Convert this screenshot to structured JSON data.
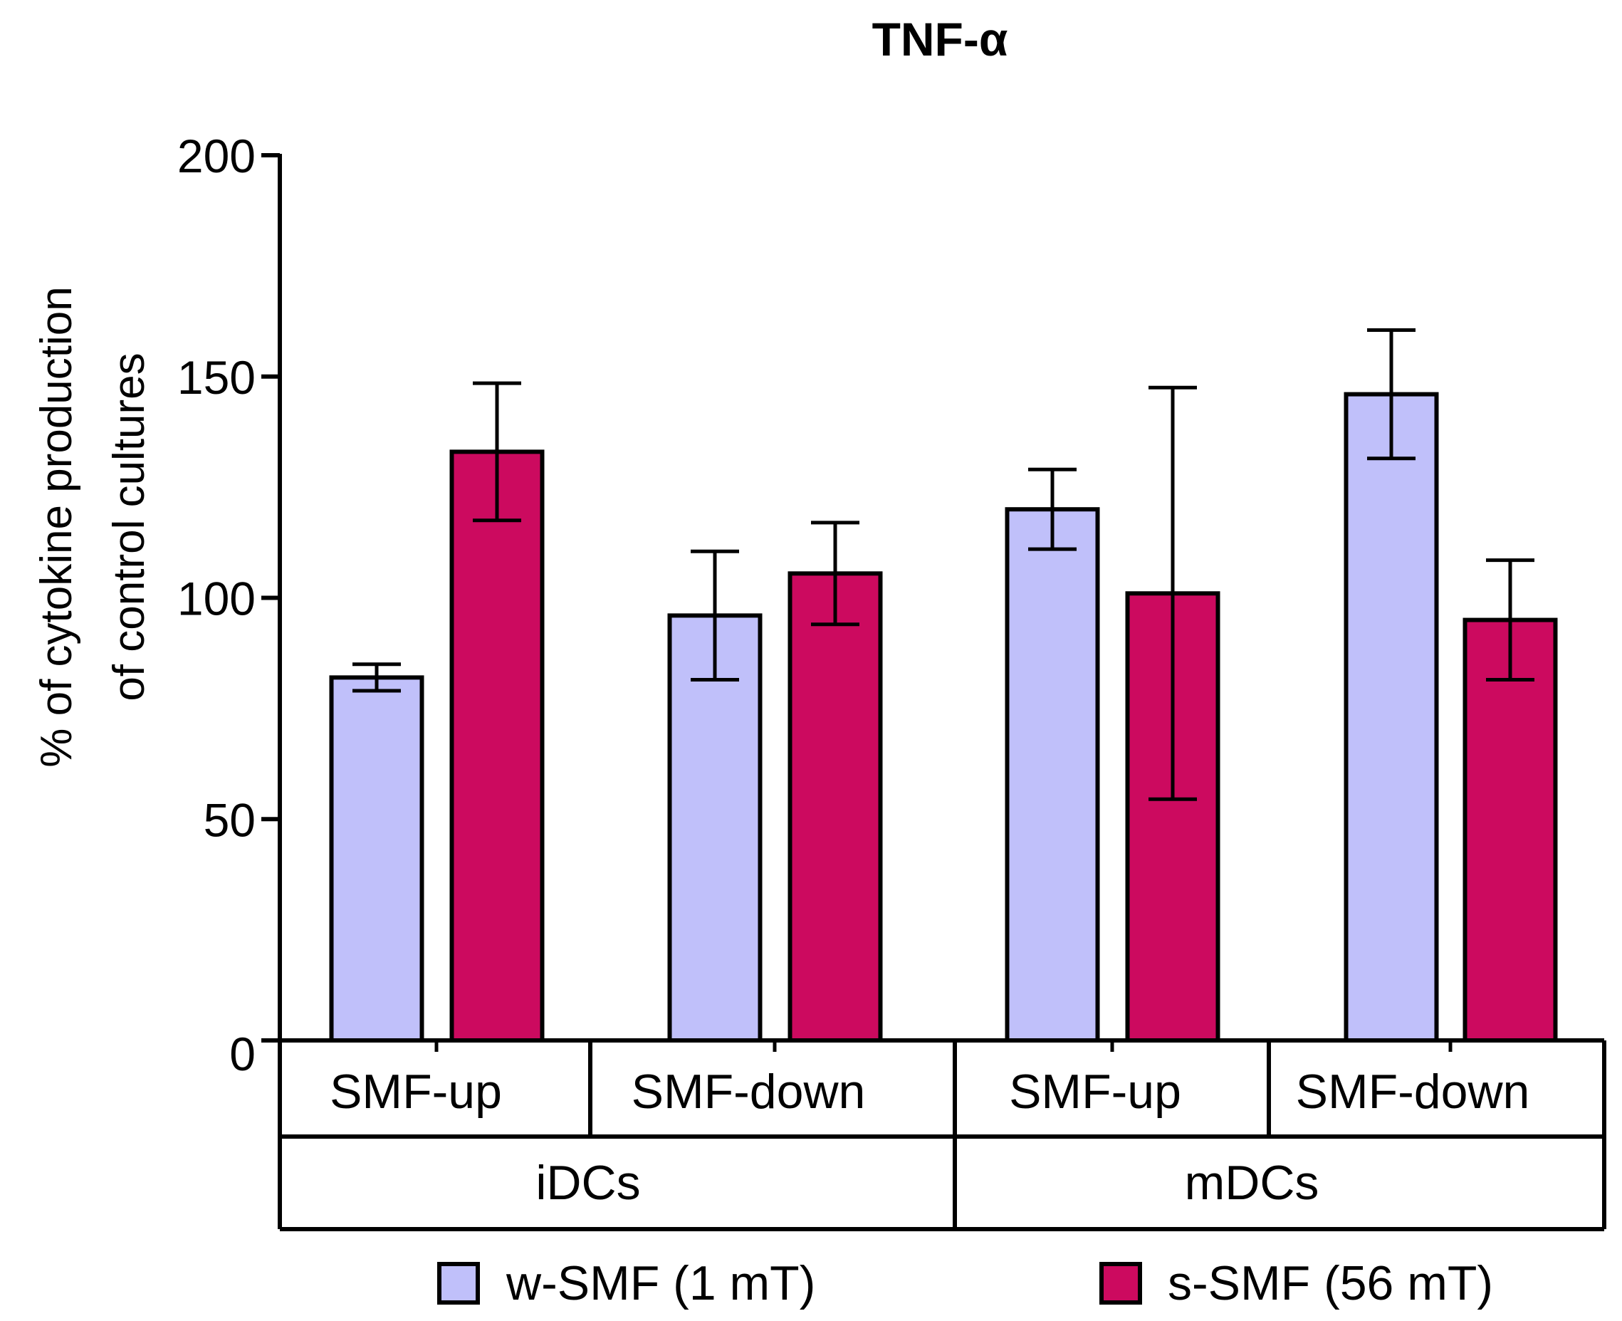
{
  "chart_data": {
    "type": "bar",
    "title": "TNF-α",
    "ylabel_lines": [
      "% of cytokine production",
      "of control cultures"
    ],
    "ylim": [
      0,
      200
    ],
    "yticks": [
      0,
      50,
      100,
      150,
      200
    ],
    "categories": [
      "SMF-up",
      "SMF-down",
      "SMF-up",
      "SMF-down"
    ],
    "groups": [
      {
        "label": "iDCs",
        "categories": [
          "SMF-up",
          "SMF-down"
        ]
      },
      {
        "label": "mDCs",
        "categories": [
          "SMF-up",
          "SMF-down"
        ]
      }
    ],
    "series": [
      {
        "name": "w-SMF (1 mT)",
        "color": "#c0c0fa",
        "values": [
          82,
          96,
          120,
          146
        ],
        "error": [
          3,
          14.5,
          9,
          14.5
        ]
      },
      {
        "name": "s-SMF (56 mT)",
        "color": "#cc0a5f",
        "values": [
          133,
          105.5,
          101,
          95
        ],
        "error": [
          15.5,
          11.5,
          46.5,
          13.5
        ]
      }
    ],
    "legend": "bottom",
    "grid": false
  }
}
